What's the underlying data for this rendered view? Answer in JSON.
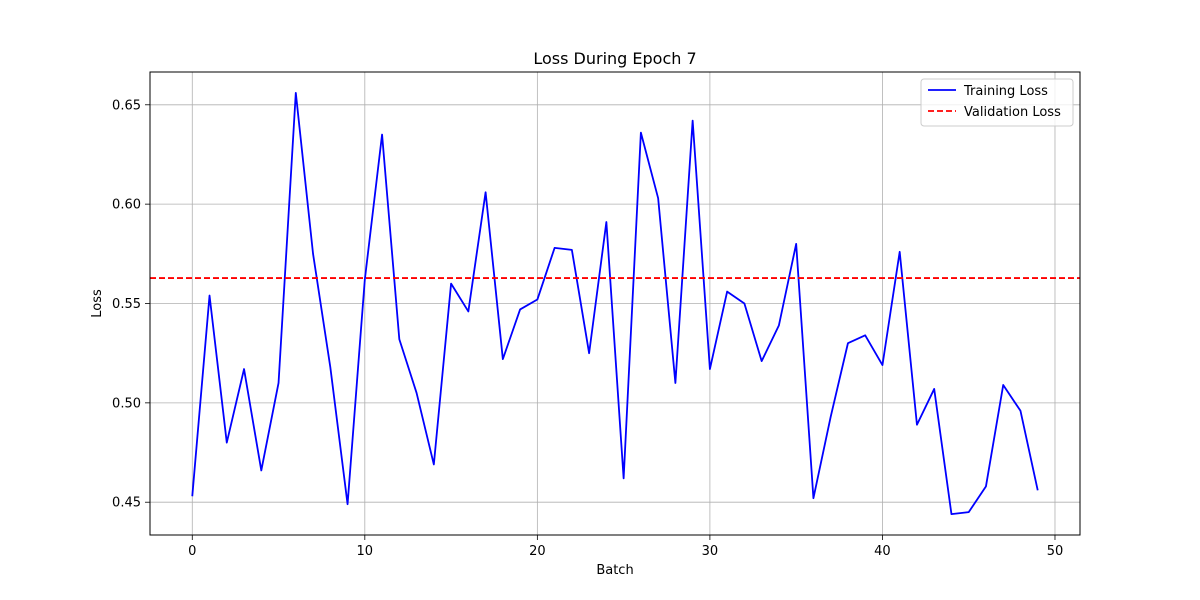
{
  "chart_data": {
    "type": "line",
    "title": "Loss During Epoch 7",
    "xlabel": "Batch",
    "ylabel": "Loss",
    "xlim": [
      -2.45,
      51.45
    ],
    "ylim": [
      0.4335,
      0.6665
    ],
    "xticks": [
      0,
      10,
      20,
      30,
      40,
      50
    ],
    "yticks": [
      0.45,
      0.5,
      0.55,
      0.6,
      0.65
    ],
    "grid": true,
    "legend_position": "top-right",
    "series": [
      {
        "name": "Training Loss",
        "color": "#0000ff",
        "style": "solid",
        "x": [
          0,
          1,
          2,
          3,
          4,
          5,
          6,
          7,
          8,
          9,
          10,
          11,
          12,
          13,
          14,
          15,
          16,
          17,
          18,
          19,
          20,
          21,
          22,
          23,
          24,
          25,
          26,
          27,
          28,
          29,
          30,
          31,
          32,
          33,
          34,
          35,
          36,
          37,
          38,
          39,
          40,
          41,
          42,
          43,
          44,
          45,
          46,
          47,
          48,
          49
        ],
        "values": [
          0.453,
          0.554,
          0.48,
          0.517,
          0.466,
          0.51,
          0.656,
          0.575,
          0.518,
          0.449,
          0.562,
          0.635,
          0.532,
          0.505,
          0.469,
          0.56,
          0.546,
          0.606,
          0.522,
          0.547,
          0.552,
          0.578,
          0.577,
          0.525,
          0.591,
          0.462,
          0.636,
          0.603,
          0.51,
          0.642,
          0.517,
          0.556,
          0.55,
          0.521,
          0.539,
          0.58,
          0.452,
          0.493,
          0.53,
          0.534,
          0.519,
          0.576,
          0.489,
          0.507,
          0.444,
          0.445,
          0.458,
          0.509,
          0.496,
          0.456
        ]
      },
      {
        "name": "Validation Loss",
        "color": "#ff0000",
        "style": "dashed",
        "value": 0.5628
      }
    ]
  }
}
